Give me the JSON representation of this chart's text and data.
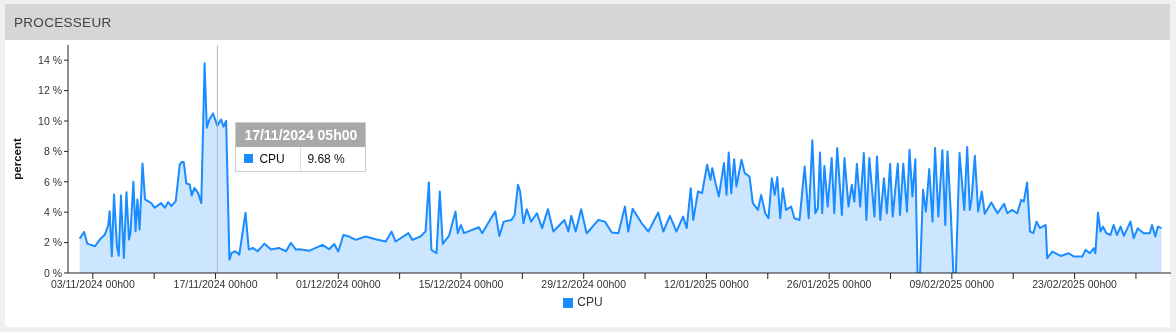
{
  "chart_data": {
    "type": "area",
    "title": "PROCESSEUR",
    "ylabel": "percent",
    "x": [
      "2024-11-01T12:00",
      "2024-11-02T00:00",
      "2024-11-02T09:00",
      "2024-11-03T06:00",
      "2024-11-03T19:00",
      "2024-11-04T09:00",
      "2024-11-04T18:00",
      "2024-11-04T22:00",
      "2024-11-05T04:00",
      "2024-11-05T10:00",
      "2024-11-05T18:00",
      "2024-11-05T23:00",
      "2024-11-06T05:00",
      "2024-11-06T13:00",
      "2024-11-06T20:00",
      "2024-11-07T03:00",
      "2024-11-07T07:00",
      "2024-11-07T15:00",
      "2024-11-07T21:00",
      "2024-11-08T02:00",
      "2024-11-08T08:00",
      "2024-11-08T16:00",
      "2024-11-08T23:00",
      "2024-11-09T16:00",
      "2024-11-10T01:00",
      "2024-11-10T19:00",
      "2024-11-11T05:00",
      "2024-11-11T14:00",
      "2024-11-11T23:00",
      "2024-11-12T11:00",
      "2024-11-12T22:00",
      "2024-11-13T04:00",
      "2024-11-13T09:00",
      "2024-11-13T16:00",
      "2024-11-14T01:00",
      "2024-11-14T07:00",
      "2024-11-14T14:00",
      "2024-11-15T00:00",
      "2024-11-15T09:00",
      "2024-11-15T18:00",
      "2024-11-16T00:00",
      "2024-11-16T07:00",
      "2024-11-16T17:00",
      "2024-11-17T05:00",
      "2024-11-17T15:00",
      "2024-11-17T22:00",
      "2024-11-18T05:00",
      "2024-11-18T14:00",
      "2024-11-18T20:00",
      "2024-11-19T06:00",
      "2024-11-19T17:00",
      "2024-11-20T10:00",
      "2024-11-20T19:00",
      "2024-11-21T06:00",
      "2024-11-21T19:00",
      "2024-11-22T14:00",
      "2024-11-23T08:00",
      "2024-11-24T05:00",
      "2024-11-25T01:00",
      "2024-11-25T14:00",
      "2024-11-26T04:00",
      "2024-11-26T13:00",
      "2024-11-27T17:00",
      "2024-11-29T05:00",
      "2024-11-29T23:00",
      "2024-11-30T13:00",
      "2024-12-01T00:00",
      "2024-12-01T14:00",
      "2024-12-02T06:00",
      "2024-12-03T00:00",
      "2024-12-04T03:00",
      "2024-12-05T06:00",
      "2024-12-06T10:00",
      "2024-12-07T02:00",
      "2024-12-07T13:00",
      "2024-12-09T00:00",
      "2024-12-09T11:00",
      "2024-12-10T09:00",
      "2024-12-10T23:00",
      "2024-12-11T08:00",
      "2024-12-11T15:00",
      "2024-12-12T05:00",
      "2024-12-12T14:00",
      "2024-12-12T22:00",
      "2024-12-13T15:00",
      "2024-12-14T09:00",
      "2024-12-14T15:00",
      "2024-12-15T00:00",
      "2024-12-15T08:00",
      "2024-12-17T01:00",
      "2024-12-17T10:00",
      "2024-12-18T13:00",
      "2024-12-18T22:00",
      "2024-12-19T09:00",
      "2024-12-19T21:00",
      "2024-12-20T18:00",
      "2024-12-21T03:00",
      "2024-12-21T12:00",
      "2024-12-21T18:00",
      "2024-12-22T03:00",
      "2024-12-22T12:00",
      "2024-12-23T00:00",
      "2024-12-23T16:00",
      "2024-12-24T06:00",
      "2024-12-24T22:00",
      "2024-12-25T13:00",
      "2024-12-26T19:00",
      "2024-12-27T06:00",
      "2024-12-27T14:00",
      "2024-12-28T02:00",
      "2024-12-28T17:00",
      "2024-12-29T08:00",
      "2024-12-29T13:00",
      "2024-12-30T16:00",
      "2024-12-31T10:00",
      "2025-01-01T05:00",
      "2025-01-01T23:00",
      "2025-01-02T17:00",
      "2025-01-03T02:00",
      "2025-01-03T14:00",
      "2025-01-04T15:00",
      "2025-01-05T09:00",
      "2025-01-06T12:00",
      "2025-01-07T02:00",
      "2025-01-07T20:00",
      "2025-01-08T14:00",
      "2025-01-09T08:00",
      "2025-01-09T18:00",
      "2025-01-10T05:00",
      "2025-01-10T12:00",
      "2025-01-11T01:00",
      "2025-01-11T12:00",
      "2025-01-12T02:00",
      "2025-01-12T11:00",
      "2025-01-12T16:00",
      "2025-01-13T01:00",
      "2025-01-13T10:00",
      "2025-01-14T00:00",
      "2025-01-14T07:00",
      "2025-01-14T13:00",
      "2025-01-14T20:00",
      "2025-01-15T04:00",
      "2025-01-15T10:00",
      "2025-01-16T00:00",
      "2025-01-16T09:00",
      "2025-01-16T22:00",
      "2025-01-17T07:00",
      "2025-01-17T21:00",
      "2025-01-18T06:00",
      "2025-01-18T17:00",
      "2025-01-19T02:00",
      "2025-01-19T11:00",
      "2025-01-19T19:00",
      "2025-01-20T02:00",
      "2025-01-20T10:00",
      "2025-01-20T17:00",
      "2025-01-21T02:00",
      "2025-01-21T16:00",
      "2025-01-22T01:00",
      "2025-01-22T15:00",
      "2025-01-23T05:00",
      "2025-01-23T16:00",
      "2025-01-24T02:00",
      "2025-01-24T10:00",
      "2025-01-24T17:00",
      "2025-01-24T23:00",
      "2025-01-25T05:00",
      "2025-01-25T11:00",
      "2025-01-25T20:00",
      "2025-01-26T07:00",
      "2025-01-26T14:00",
      "2025-01-26T22:00",
      "2025-01-27T11:00",
      "2025-01-27T18:00",
      "2025-01-28T05:00",
      "2025-01-28T14:00",
      "2025-01-28T21:00",
      "2025-01-29T04:00",
      "2025-01-29T13:00",
      "2025-01-29T23:00",
      "2025-01-30T06:00",
      "2025-01-30T14:00",
      "2025-01-31T04:00",
      "2025-01-31T11:00",
      "2025-01-31T20:00",
      "2025-02-01T06:00",
      "2025-02-01T14:00",
      "2025-02-01T23:00",
      "2025-02-02T06:00",
      "2025-02-02T20:00",
      "2025-02-03T02:00",
      "2025-02-03T11:00",
      "2025-02-03T21:00",
      "2025-02-04T04:00",
      "2025-02-04T12:00",
      "2025-02-04T20:00",
      "2025-02-05T02:00",
      "2025-02-05T09:00",
      "2025-02-05T17:00",
      "2025-02-06T01:00",
      "2025-02-06T10:00",
      "2025-02-06T19:00",
      "2025-02-07T02:00",
      "2025-02-07T11:00",
      "2025-02-07T22:00",
      "2025-02-08T06:00",
      "2025-02-08T12:00",
      "2025-02-08T21:00",
      "2025-02-09T04:00",
      "2025-02-09T11:00",
      "2025-02-09T21:00",
      "2025-02-10T10:00",
      "2025-02-10T18:00",
      "2025-02-11T01:00",
      "2025-02-11T06:00",
      "2025-02-11T15:00",
      "2025-02-12T00:00",
      "2025-02-12T10:00",
      "2025-02-12T18:00",
      "2025-02-13T12:00",
      "2025-02-14T05:00",
      "2025-02-14T23:00",
      "2025-02-15T08:00",
      "2025-02-15T21:00",
      "2025-02-16T11:00",
      "2025-02-16T22:00",
      "2025-02-17T05:00",
      "2025-02-17T14:00",
      "2025-02-17T22:00",
      "2025-02-18T07:00",
      "2025-02-18T16:00",
      "2025-02-19T01:00",
      "2025-02-19T17:00",
      "2025-02-19T21:00",
      "2025-02-20T11:00",
      "2025-02-21T10:00",
      "2025-02-22T08:00",
      "2025-02-22T22:00",
      "2025-02-23T21:00",
      "2025-02-24T06:00",
      "2025-02-24T18:00",
      "2025-02-25T05:00",
      "2025-02-25T09:00",
      "2025-02-25T16:00",
      "2025-02-25T23:00",
      "2025-02-26T06:00",
      "2025-02-26T15:00",
      "2025-02-27T02:00",
      "2025-02-27T11:00",
      "2025-02-27T20:00",
      "2025-02-28T06:00",
      "2025-02-28T15:00",
      "2025-03-01T09:00",
      "2025-03-01T18:00",
      "2025-03-02T05:00",
      "2025-03-02T21:00",
      "2025-03-03T14:00",
      "2025-03-03T20:00",
      "2025-03-04T05:00",
      "2025-03-04T12:00",
      "2025-03-04T22:00"
    ],
    "series": [
      {
        "name": "CPU",
        "color": "#1a8cff",
        "values": [
          2.26,
          2.7,
          1.93,
          1.76,
          2.2,
          2.53,
          3.14,
          4.07,
          1.1,
          5.16,
          1.76,
          1.14,
          5.1,
          0.99,
          5.32,
          2.2,
          2.64,
          6.0,
          2.75,
          4.84,
          2.86,
          7.2,
          4.84,
          4.6,
          4.29,
          4.6,
          4.29,
          4.66,
          4.4,
          4.73,
          7.14,
          7.3,
          7.3,
          5.9,
          5.82,
          5.1,
          5.6,
          5.27,
          4.6,
          13.8,
          9.56,
          10.1,
          10.5,
          9.68,
          10.1,
          9.63,
          10.0,
          0.88,
          1.32,
          1.43,
          1.21,
          3.96,
          1.54,
          1.65,
          1.43,
          1.93,
          1.54,
          1.65,
          1.43,
          1.98,
          1.54,
          1.56,
          1.47,
          1.85,
          1.56,
          1.91,
          1.41,
          2.5,
          2.4,
          2.18,
          2.4,
          2.22,
          2.07,
          2.73,
          2.07,
          2.62,
          2.18,
          2.4,
          2.73,
          5.96,
          1.52,
          1.3,
          5.36,
          1.91,
          2.44,
          4.04,
          2.62,
          3.16,
          2.62,
          3.01,
          2.62,
          3.71,
          4.04,
          2.44,
          3.38,
          3.49,
          3.82,
          5.8,
          5.36,
          3.27,
          4.2,
          3.38,
          3.93,
          2.95,
          4.2,
          2.73,
          3.49,
          2.73,
          3.76,
          2.73,
          4.2,
          2.62,
          2.73,
          3.49,
          3.38,
          2.66,
          2.62,
          4.37,
          2.73,
          4.22,
          3.27,
          2.73,
          3.98,
          2.73,
          3.76,
          2.73,
          3.71,
          2.95,
          5.58,
          3.49,
          5.36,
          5.25,
          7.12,
          6.13,
          6.9,
          5.91,
          5.03,
          7.23,
          5.14,
          7.93,
          5.25,
          7.49,
          5.69,
          7.45,
          6.57,
          6.35,
          4.59,
          4.15,
          5.14,
          3.93,
          3.6,
          6.24,
          5.14,
          6.31,
          3.6,
          5.58,
          4.15,
          4.37,
          3.6,
          3.49,
          7.01,
          3.6,
          8.73,
          3.93,
          4.26,
          7.93,
          3.93,
          7.05,
          4.37,
          7.56,
          3.93,
          8.22,
          3.82,
          7.56,
          4.37,
          5.8,
          4.7,
          7.19,
          4.37,
          7.89,
          3.49,
          7.56,
          3.71,
          7.67,
          3.49,
          6.24,
          3.93,
          7.19,
          3.71,
          7.19,
          3.82,
          7.19,
          4.04,
          8.11,
          5.03,
          7.49,
          0,
          0,
          5.47,
          4.04,
          6.84,
          3.38,
          8.22,
          3.71,
          8.07,
          3.16,
          8.0,
          4.04,
          0,
          0,
          7.89,
          4.15,
          8.29,
          4.15,
          4.86,
          7.71,
          4.04,
          5.36,
          3.89,
          4.64,
          3.93,
          4.55,
          3.93,
          4.15,
          3.93,
          4.81,
          4.7,
          5.96,
          2.73,
          2.62,
          3.38,
          2.95,
          3.16,
          0.97,
          1.41,
          1.12,
          1.3,
          1.08,
          1.08,
          1.52,
          1.3,
          1.63,
          1.3,
          3.98,
          2.73,
          3.05,
          2.62,
          2.5,
          3.16,
          2.5,
          3.05,
          2.44,
          3.38,
          2.29,
          2.95,
          2.62,
          2.62,
          3.16,
          2.4,
          3.05,
          2.95
        ]
      }
    ],
    "xlim": [
      "2024-10-31T04:00",
      "2025-03-06T00:00"
    ],
    "xticks": [
      {
        "value": "2024-11-03",
        "label": "03/11/2024 00h00"
      },
      {
        "value": "2024-11-10",
        "label": null
      },
      {
        "value": "2024-11-17",
        "label": "17/11/2024 00h00"
      },
      {
        "value": "2024-11-24",
        "label": null
      },
      {
        "value": "2024-12-01",
        "label": "01/12/2024 00h00"
      },
      {
        "value": "2024-12-08",
        "label": null
      },
      {
        "value": "2024-12-15",
        "label": "15/12/2024 00h00"
      },
      {
        "value": "2024-12-22",
        "label": null
      },
      {
        "value": "2024-12-29",
        "label": "29/12/2024 00h00"
      },
      {
        "value": "2025-01-05",
        "label": null
      },
      {
        "value": "2025-01-12",
        "label": "12/01/2025 00h00"
      },
      {
        "value": "2025-01-19",
        "label": null
      },
      {
        "value": "2025-01-26",
        "label": "26/01/2025 00h00"
      },
      {
        "value": "2025-02-02",
        "label": null
      },
      {
        "value": "2025-02-09",
        "label": "09/02/2025 00h00"
      },
      {
        "value": "2025-02-16",
        "label": null
      },
      {
        "value": "2025-02-23",
        "label": "23/02/2025 00h00"
      },
      {
        "value": "2025-03-02",
        "label": null
      }
    ],
    "ylim": [
      0,
      15
    ],
    "yticks": [
      {
        "value": 0,
        "label": "0 %"
      },
      {
        "value": 2,
        "label": "2 %"
      },
      {
        "value": 4,
        "label": "4 %"
      },
      {
        "value": 6,
        "label": "6 %"
      },
      {
        "value": 8,
        "label": "8 %"
      },
      {
        "value": 10,
        "label": "10 %"
      },
      {
        "value": 12,
        "label": "12 %"
      },
      {
        "value": 14,
        "label": "14 %"
      }
    ],
    "grid": false,
    "legend": "bottom",
    "marker": "none",
    "line_style": "solid",
    "annotations": [
      {
        "text": "17/11/2024 05h00",
        "x": "2024-11-17T05:00",
        "y": 9.68
      },
      "CPU",
      "9.68 %"
    ],
    "ref_lines": [
      {
        "axis": "x",
        "value": "2024-11-17T05:00",
        "color": "#b8b8b8"
      }
    ]
  }
}
